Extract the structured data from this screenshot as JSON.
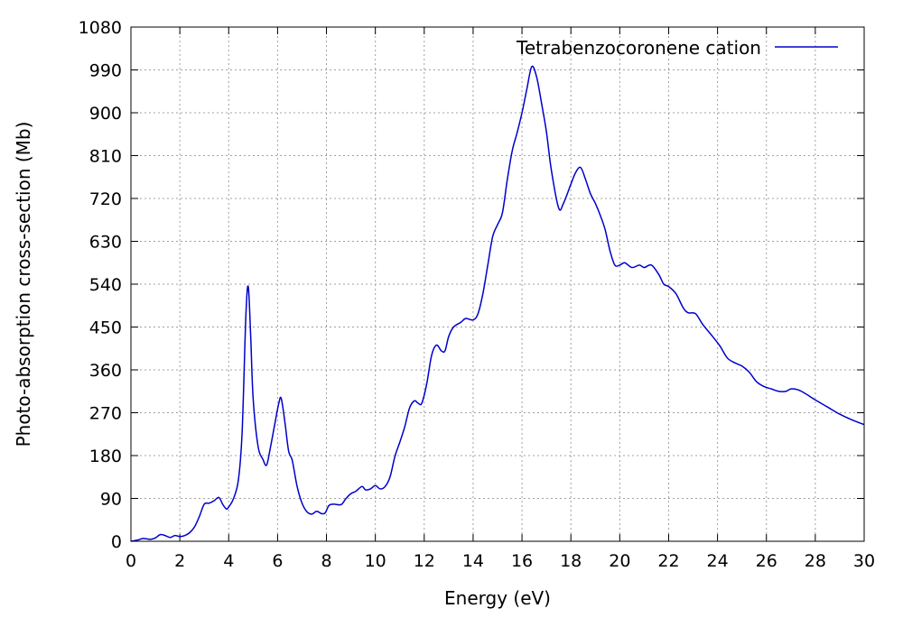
{
  "chart_data": {
    "type": "line",
    "title": "",
    "xlabel": "Energy (eV)",
    "ylabel": "Photo-absorption cross-section (Mb)",
    "xlim": [
      0,
      30
    ],
    "ylim": [
      0,
      1080
    ],
    "x_ticks": [
      0,
      2,
      4,
      6,
      8,
      10,
      12,
      14,
      16,
      18,
      20,
      22,
      24,
      26,
      28,
      30
    ],
    "y_ticks": [
      0,
      90,
      180,
      270,
      360,
      450,
      540,
      630,
      720,
      810,
      900,
      990,
      1080
    ],
    "x_tick_labels": [
      "0",
      "2",
      "4",
      "6",
      "8",
      "10",
      "12",
      "14",
      "16",
      "18",
      "20",
      "22",
      "24",
      "26",
      "28",
      "30"
    ],
    "y_tick_labels": [
      "0",
      "90",
      "180",
      "270",
      "360",
      "450",
      "540",
      "630",
      "720",
      "810",
      "900",
      "990",
      "1080"
    ],
    "grid": true,
    "legend_position": "top-right",
    "series": [
      {
        "name": "Tetrabenzocoronene cation",
        "color": "#0000cc",
        "points": [
          [
            0.0,
            0
          ],
          [
            0.3,
            3
          ],
          [
            0.5,
            6
          ],
          [
            0.8,
            4
          ],
          [
            1.0,
            7
          ],
          [
            1.2,
            14
          ],
          [
            1.4,
            12
          ],
          [
            1.6,
            8
          ],
          [
            1.8,
            12
          ],
          [
            2.0,
            10
          ],
          [
            2.2,
            12
          ],
          [
            2.4,
            18
          ],
          [
            2.6,
            30
          ],
          [
            2.8,
            52
          ],
          [
            3.0,
            78
          ],
          [
            3.2,
            80
          ],
          [
            3.4,
            85
          ],
          [
            3.6,
            92
          ],
          [
            3.75,
            78
          ],
          [
            3.9,
            68
          ],
          [
            4.0,
            72
          ],
          [
            4.2,
            90
          ],
          [
            4.4,
            130
          ],
          [
            4.55,
            230
          ],
          [
            4.7,
            470
          ],
          [
            4.8,
            535
          ],
          [
            4.9,
            430
          ],
          [
            5.0,
            300
          ],
          [
            5.2,
            200
          ],
          [
            5.4,
            172
          ],
          [
            5.55,
            160
          ],
          [
            5.7,
            195
          ],
          [
            5.9,
            250
          ],
          [
            6.05,
            290
          ],
          [
            6.15,
            300
          ],
          [
            6.3,
            250
          ],
          [
            6.45,
            190
          ],
          [
            6.6,
            170
          ],
          [
            6.8,
            115
          ],
          [
            7.0,
            80
          ],
          [
            7.2,
            62
          ],
          [
            7.4,
            57
          ],
          [
            7.6,
            63
          ],
          [
            7.8,
            58
          ],
          [
            7.95,
            60
          ],
          [
            8.1,
            75
          ],
          [
            8.3,
            78
          ],
          [
            8.6,
            77
          ],
          [
            8.8,
            90
          ],
          [
            9.0,
            100
          ],
          [
            9.2,
            105
          ],
          [
            9.45,
            115
          ],
          [
            9.6,
            108
          ],
          [
            9.8,
            110
          ],
          [
            10.0,
            117
          ],
          [
            10.2,
            110
          ],
          [
            10.4,
            115
          ],
          [
            10.6,
            135
          ],
          [
            10.8,
            178
          ],
          [
            11.0,
            208
          ],
          [
            11.2,
            240
          ],
          [
            11.4,
            280
          ],
          [
            11.6,
            295
          ],
          [
            11.75,
            290
          ],
          [
            11.9,
            290
          ],
          [
            12.1,
            330
          ],
          [
            12.3,
            390
          ],
          [
            12.5,
            412
          ],
          [
            12.7,
            400
          ],
          [
            12.85,
            400
          ],
          [
            13.0,
            430
          ],
          [
            13.2,
            450
          ],
          [
            13.5,
            460
          ],
          [
            13.7,
            468
          ],
          [
            14.0,
            465
          ],
          [
            14.2,
            478
          ],
          [
            14.4,
            520
          ],
          [
            14.6,
            580
          ],
          [
            14.8,
            640
          ],
          [
            15.0,
            665
          ],
          [
            15.2,
            690
          ],
          [
            15.4,
            760
          ],
          [
            15.6,
            820
          ],
          [
            15.8,
            858
          ],
          [
            16.0,
            900
          ],
          [
            16.2,
            950
          ],
          [
            16.4,
            997
          ],
          [
            16.6,
            975
          ],
          [
            16.8,
            920
          ],
          [
            17.0,
            860
          ],
          [
            17.2,
            780
          ],
          [
            17.5,
            700
          ],
          [
            17.7,
            710
          ],
          [
            18.0,
            750
          ],
          [
            18.2,
            775
          ],
          [
            18.4,
            785
          ],
          [
            18.6,
            760
          ],
          [
            18.8,
            730
          ],
          [
            19.0,
            710
          ],
          [
            19.2,
            685
          ],
          [
            19.4,
            655
          ],
          [
            19.6,
            610
          ],
          [
            19.8,
            580
          ],
          [
            20.0,
            580
          ],
          [
            20.2,
            585
          ],
          [
            20.5,
            575
          ],
          [
            20.8,
            580
          ],
          [
            21.0,
            575
          ],
          [
            21.3,
            580
          ],
          [
            21.6,
            560
          ],
          [
            21.8,
            540
          ],
          [
            22.0,
            535
          ],
          [
            22.3,
            520
          ],
          [
            22.6,
            490
          ],
          [
            22.8,
            480
          ],
          [
            23.1,
            478
          ],
          [
            23.4,
            455
          ],
          [
            23.8,
            430
          ],
          [
            24.1,
            410
          ],
          [
            24.4,
            385
          ],
          [
            24.7,
            375
          ],
          [
            25.0,
            368
          ],
          [
            25.3,
            355
          ],
          [
            25.6,
            335
          ],
          [
            25.9,
            325
          ],
          [
            26.2,
            320
          ],
          [
            26.5,
            315
          ],
          [
            26.8,
            315
          ],
          [
            27.0,
            320
          ],
          [
            27.3,
            318
          ],
          [
            27.6,
            310
          ],
          [
            28.0,
            297
          ],
          [
            28.5,
            282
          ],
          [
            29.0,
            267
          ],
          [
            29.5,
            255
          ],
          [
            30.0,
            245
          ]
        ]
      }
    ]
  }
}
